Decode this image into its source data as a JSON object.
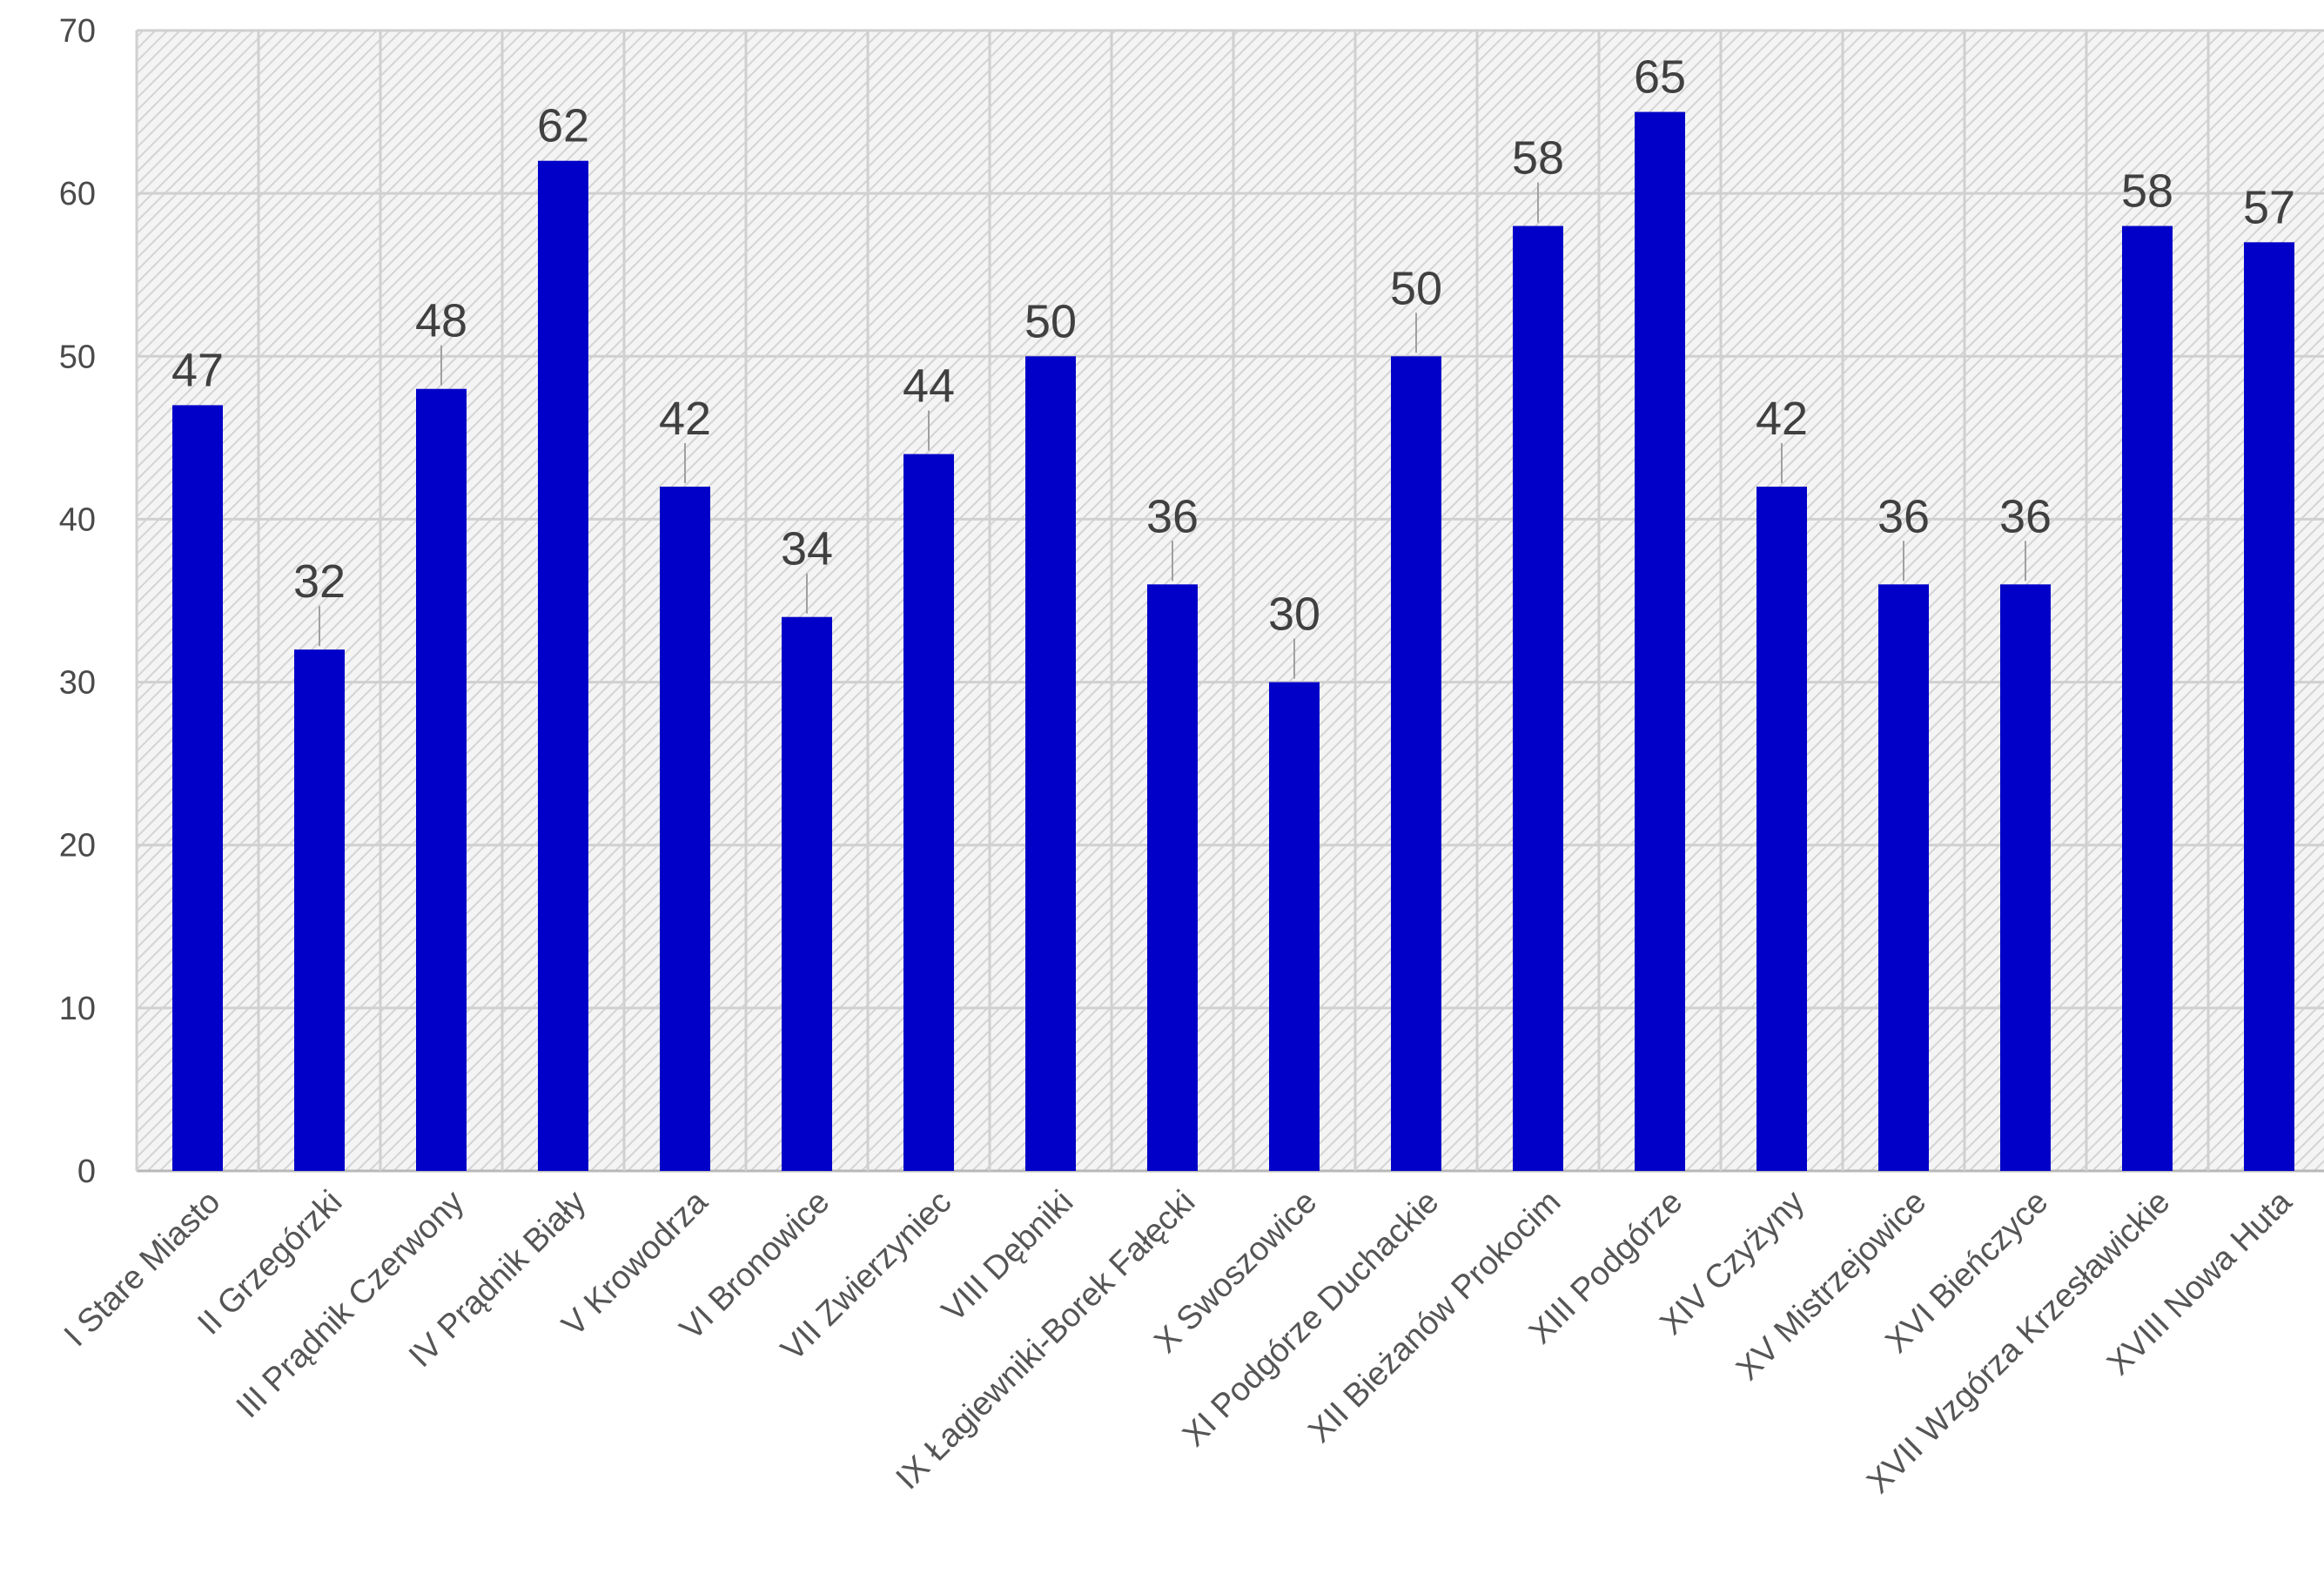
{
  "chart_data": {
    "type": "bar",
    "title": "",
    "xlabel": "",
    "ylabel": "",
    "ylim": [
      0,
      70
    ],
    "yticks": [
      0,
      10,
      20,
      30,
      40,
      50,
      60,
      70
    ],
    "grid": true,
    "legend": "none",
    "bar_color": "#0000c8",
    "categories": [
      "I Stare Miasto",
      "II Grzegórzki",
      "III Prądnik Czerwony",
      "IV Prądnik Biały",
      "V Krowodrza",
      "VI Bronowice",
      "VII Zwierzyniec",
      "VIII Dębniki",
      "IX Łagiewniki-Borek Fałęcki",
      "X Swoszowice",
      "XI Podgórze Duchackie",
      "XII Bieżanów Prokocim",
      "XIII Podgórze",
      "XIV Czyżyny",
      "XV Mistrzejowice",
      "XVI Bieńczyce",
      "XVII Wzgórza Krzesławickie",
      "XVIII Nowa Huta"
    ],
    "values": [
      47,
      32,
      48,
      62,
      42,
      34,
      44,
      50,
      36,
      30,
      50,
      58,
      65,
      42,
      36,
      36,
      58,
      57
    ]
  }
}
